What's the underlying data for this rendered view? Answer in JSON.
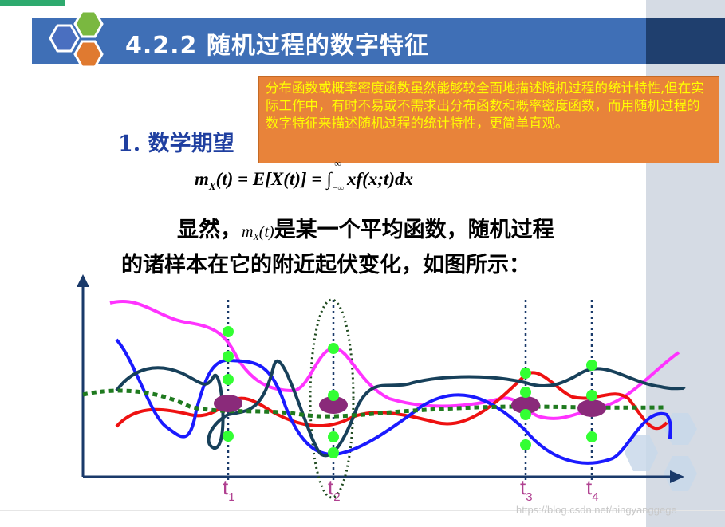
{
  "header": {
    "title": "4.2.2 随机过程的数字特征"
  },
  "note": {
    "text": "分布函数或概率密度函数虽然能够较全面地描述随机过程的统计特性,但在实际工作中，有时不易或不需求出分布函数和概率密度函数，而用随机过程的数字特征来描述随机过程的统计特性，更简单直观。"
  },
  "section": {
    "heading": "1. 数学期望"
  },
  "formula": {
    "lhs": "m",
    "lhs_sub": "X",
    "lhs_arg": "(t) = E[X(t)] = ",
    "int_sign": "∫",
    "upper": "∞",
    "lower": "−∞",
    "integrand": "xf(x;t)dx"
  },
  "body": {
    "line1_prefix": "显然，",
    "inline_m": "m",
    "inline_sub": "X",
    "inline_arg": "(t)",
    "line1_suffix": "是某一个平均函数，随机过程",
    "line2": "的诸样本在它的附近起伏变化，如图所示："
  },
  "figure": {
    "time_labels": [
      {
        "t": "t",
        "sub": "1"
      },
      {
        "t": "t",
        "sub": "2"
      },
      {
        "t": "t",
        "sub": "3"
      },
      {
        "t": "t",
        "sub": "4"
      }
    ],
    "colors": {
      "magenta": "#ff33ff",
      "red": "#ee1111",
      "blue": "#1a1aff",
      "navy": "#17405a",
      "mean_green": "#1f7a1f",
      "point_green": "#33ff33",
      "mean_marker": "#8a2a7a"
    }
  },
  "watermark": {
    "text": "https://blog.csdn.net/ningyanggege"
  }
}
